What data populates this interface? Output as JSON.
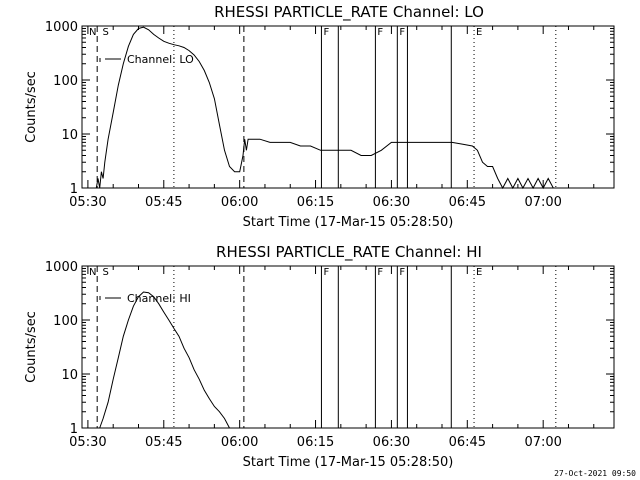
{
  "footer": {
    "timestamp": "27-Oct-2021 09:50"
  },
  "chart_data": [
    {
      "type": "line",
      "title": "RHESSI PARTICLE_RATE Channel: LO",
      "xlabel": "Start Time (17-Mar-15 05:28:50)",
      "ylabel": "Counts/sec",
      "y_scale": "log",
      "ylim": [
        1,
        1000
      ],
      "xlim": [
        "05:28:50",
        "07:14:00"
      ],
      "x_ticks": [
        "05:30",
        "05:45",
        "06:00",
        "06:15",
        "06:30",
        "06:45",
        "07:00"
      ],
      "y_ticks": [
        "1",
        "10",
        "100",
        "1000"
      ],
      "legend": "Channel: LO",
      "series": [
        {
          "name": "Channel: LO",
          "x": [
            "05:31:40",
            "05:32:00",
            "05:32:20",
            "05:32:40",
            "05:33:00",
            "05:33:20",
            "05:33:40",
            "05:34:00",
            "05:35:00",
            "05:36:00",
            "05:37:00",
            "05:38:00",
            "05:39:00",
            "05:40:00",
            "05:41:00",
            "05:42:00",
            "05:43:00",
            "05:44:00",
            "05:45:00",
            "05:46:00",
            "05:47:00",
            "05:48:00",
            "05:49:00",
            "05:50:00",
            "05:51:00",
            "05:52:00",
            "05:53:00",
            "05:54:00",
            "05:55:00",
            "05:56:00",
            "05:57:00",
            "05:58:00",
            "05:59:00",
            "06:00:00",
            "06:00:40",
            "06:01:00",
            "06:01:20",
            "06:01:40",
            "06:02:00",
            "06:04:00",
            "06:06:00",
            "06:08:00",
            "06:10:00",
            "06:12:00",
            "06:14:00",
            "06:16:00",
            "06:18:00",
            "06:20:00",
            "06:22:00",
            "06:24:00",
            "06:26:00",
            "06:28:00",
            "06:30:00",
            "06:32:00",
            "06:34:00",
            "06:36:00",
            "06:38:00",
            "06:40:00",
            "06:42:00",
            "06:44:00",
            "06:46:00",
            "06:47:00",
            "06:48:00",
            "06:49:00",
            "06:50:00",
            "06:51:00",
            "06:52:00",
            "06:53:00",
            "06:54:00",
            "06:55:00",
            "06:56:00",
            "06:57:00",
            "06:58:00",
            "06:59:00",
            "07:00:00",
            "07:01:00",
            "07:02:00"
          ],
          "y": [
            1,
            1.5,
            1,
            2,
            1.5,
            3,
            5,
            8,
            25,
            80,
            200,
            420,
            700,
            900,
            950,
            850,
            700,
            600,
            520,
            480,
            450,
            430,
            400,
            350,
            290,
            220,
            150,
            90,
            45,
            15,
            5,
            2.5,
            2,
            2,
            4,
            8,
            5,
            8,
            8,
            8,
            7,
            7,
            7,
            6,
            6,
            5,
            5,
            5,
            5,
            4,
            4,
            5,
            7,
            7,
            7,
            7,
            7,
            7,
            7,
            6.5,
            6,
            5,
            3,
            2.5,
            2.5,
            1.5,
            1,
            1.5,
            1,
            1.5,
            1,
            1.5,
            1,
            1.5,
            1,
            1.5,
            1
          ]
        }
      ],
      "markers": {
        "dashed": [
          "05:31:50",
          "06:00:50"
        ],
        "solid": [
          "06:16:10",
          "06:19:30",
          "06:26:50",
          "06:31:10",
          "06:33:10",
          "06:41:50"
        ],
        "dotted": [
          "05:47:00",
          "06:46:20",
          "07:02:30"
        ],
        "labels": [
          {
            "text": "N",
            "at": "05:29:50"
          },
          {
            "text": "S",
            "at": "05:32:30"
          },
          {
            "text": "F",
            "at": "06:16:10"
          },
          {
            "text": "F",
            "at": "06:26:50"
          },
          {
            "text": "F",
            "at": "06:31:10"
          },
          {
            "text": "E",
            "at": "06:46:20"
          }
        ]
      }
    },
    {
      "type": "line",
      "title": "RHESSI PARTICLE_RATE Channel: HI",
      "xlabel": "Start Time (17-Mar-15 05:28:50)",
      "ylabel": "Counts/sec",
      "y_scale": "log",
      "ylim": [
        1,
        1000
      ],
      "xlim": [
        "05:28:50",
        "07:14:00"
      ],
      "x_ticks": [
        "05:30",
        "05:45",
        "06:00",
        "06:15",
        "06:30",
        "06:45",
        "07:00"
      ],
      "y_ticks": [
        "1",
        "10",
        "100",
        "1000"
      ],
      "legend": "Channel: HI",
      "series": [
        {
          "name": "Channel: HI",
          "x": [
            "05:32:20",
            "05:33:00",
            "05:34:00",
            "05:35:00",
            "05:36:00",
            "05:37:00",
            "05:38:00",
            "05:39:00",
            "05:40:00",
            "05:41:00",
            "05:42:00",
            "05:43:00",
            "05:44:00",
            "05:45:00",
            "05:46:00",
            "05:47:00",
            "05:48:00",
            "05:49:00",
            "05:50:00",
            "05:51:00",
            "05:52:00",
            "05:53:00",
            "05:54:00",
            "05:55:00",
            "05:56:00",
            "05:57:00",
            "05:58:00"
          ],
          "y": [
            1,
            1.5,
            3,
            8,
            20,
            50,
            100,
            180,
            270,
            330,
            320,
            270,
            200,
            140,
            100,
            70,
            50,
            30,
            20,
            12,
            8,
            5,
            3.5,
            2.5,
            2,
            1.5,
            1
          ]
        }
      ],
      "markers": {
        "dashed": [
          "05:31:50",
          "06:00:50"
        ],
        "solid": [
          "06:16:10",
          "06:19:30",
          "06:26:50",
          "06:31:10",
          "06:33:10",
          "06:41:50"
        ],
        "dotted": [
          "05:47:00",
          "06:46:20",
          "07:02:30"
        ],
        "labels": [
          {
            "text": "N",
            "at": "05:29:50"
          },
          {
            "text": "S",
            "at": "05:32:30"
          },
          {
            "text": "F",
            "at": "06:16:10"
          },
          {
            "text": "F",
            "at": "06:26:50"
          },
          {
            "text": "F",
            "at": "06:31:10"
          },
          {
            "text": "E",
            "at": "06:46:20"
          }
        ]
      }
    }
  ]
}
